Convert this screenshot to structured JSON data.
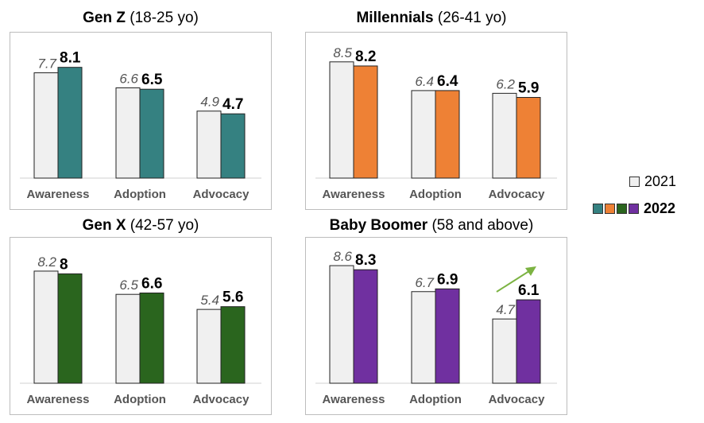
{
  "chart_data": [
    {
      "type": "bar",
      "title_bold": "Gen Z",
      "title_rest": "(18-25 yo)",
      "categories": [
        "Awareness",
        "Adoption",
        "Advocacy"
      ],
      "series": [
        {
          "name": "2021",
          "values": [
            7.7,
            6.6,
            4.9
          ],
          "color": "#f0f0f0"
        },
        {
          "name": "2022",
          "values": [
            8.1,
            6.5,
            4.7
          ],
          "color": "#358181"
        }
      ],
      "ylim": [
        0,
        10
      ]
    },
    {
      "type": "bar",
      "title_bold": "Millennials",
      "title_rest": "(26-41 yo)",
      "categories": [
        "Awareness",
        "Adoption",
        "Advocacy"
      ],
      "series": [
        {
          "name": "2021",
          "values": [
            8.5,
            6.4,
            6.2
          ],
          "color": "#f0f0f0"
        },
        {
          "name": "2022",
          "values": [
            8.2,
            6.4,
            5.9
          ],
          "color": "#ee8135"
        }
      ],
      "ylim": [
        0,
        10
      ]
    },
    {
      "type": "bar",
      "title_bold": "Gen X",
      "title_rest": "(42-57 yo)",
      "categories": [
        "Awareness",
        "Adoption",
        "Advocacy"
      ],
      "series": [
        {
          "name": "2021",
          "values": [
            8.2,
            6.5,
            5.4
          ],
          "color": "#f0f0f0"
        },
        {
          "name": "2022",
          "values": [
            8,
            6.6,
            5.6
          ],
          "color": "#2a651e"
        }
      ],
      "ylim": [
        0,
        10
      ]
    },
    {
      "type": "bar",
      "title_bold": "Baby Boomer",
      "title_rest": "(58 and above)",
      "categories": [
        "Awareness",
        "Adoption",
        "Advocacy"
      ],
      "series": [
        {
          "name": "2021",
          "values": [
            8.6,
            6.7,
            4.7
          ],
          "color": "#f0f0f0"
        },
        {
          "name": "2022",
          "values": [
            8.3,
            6.9,
            6.1
          ],
          "color": "#7030a0"
        }
      ],
      "ylim": [
        0,
        10
      ],
      "annotation": "up-arrow"
    }
  ],
  "legend": {
    "label_2021": "2021",
    "label_2022": "2022",
    "swatch_2021": "#f0f0f0",
    "swatches_2022": [
      "#358181",
      "#ee8135",
      "#2a651e",
      "#7030a0"
    ]
  }
}
